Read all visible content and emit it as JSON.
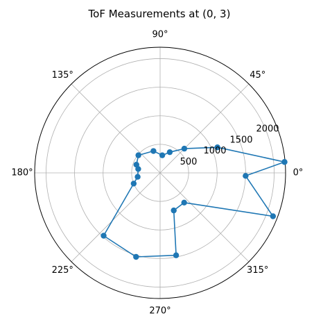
{
  "chart_data": {
    "type": "line",
    "projection": "polar",
    "title": "ToF Measurements at (0, 3)",
    "grid": true,
    "theta_unit": "degrees",
    "r_lim": [
      0,
      2200
    ],
    "theta_ticks": [
      "0°",
      "45°",
      "90°",
      "135°",
      "180°",
      "225°",
      "270°",
      "315°"
    ],
    "r_ticks": [
      "500",
      "1000",
      "1500",
      "2000"
    ],
    "r_tick_values": [
      500,
      1000,
      1500,
      2000
    ],
    "series": [
      {
        "color": "#1f77b4",
        "marker": "circle",
        "points": [
          {
            "theta": 5,
            "r": 2190
          },
          {
            "theta": 24,
            "r": 1100
          },
          {
            "theta": 45,
            "r": 600
          },
          {
            "theta": 65,
            "r": 400
          },
          {
            "theta": 83,
            "r": 310
          },
          {
            "theta": 107,
            "r": 400
          },
          {
            "theta": 141,
            "r": 490
          },
          {
            "theta": 161,
            "r": 440
          },
          {
            "theta": 170,
            "r": 390
          },
          {
            "theta": 190,
            "r": 400
          },
          {
            "theta": 202,
            "r": 500
          },
          {
            "theta": 228,
            "r": 1480
          },
          {
            "theta": 254,
            "r": 1530
          },
          {
            "theta": 281,
            "r": 1470
          },
          {
            "theta": 290,
            "r": 700
          },
          {
            "theta": 309,
            "r": 670
          },
          {
            "theta": 339,
            "r": 2120
          },
          {
            "theta": 358,
            "r": 1500
          },
          {
            "theta": 5,
            "r": 2190
          }
        ]
      }
    ]
  }
}
